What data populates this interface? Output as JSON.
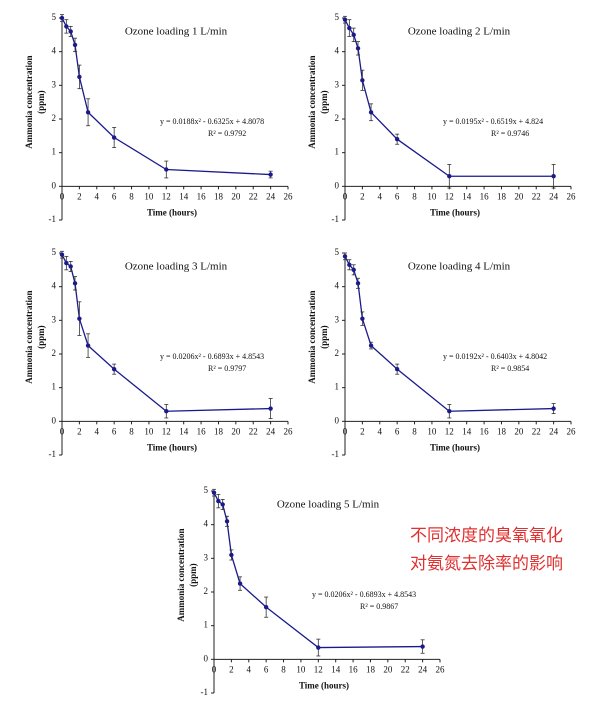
{
  "chart_data": [
    {
      "type": "line",
      "title": "Ozone loading 1 L/min",
      "xlabel": "Time (hours)",
      "ylabel": [
        "Ammonia concentration",
        "(ppm)"
      ],
      "x": [
        0,
        0.5,
        1,
        1.5,
        2,
        3,
        6,
        12,
        24
      ],
      "series": [
        {
          "color": "#1a1a8c",
          "values": [
            5.0,
            4.75,
            4.6,
            4.2,
            3.25,
            2.2,
            1.45,
            0.5,
            0.35
          ],
          "errors": [
            0.1,
            0.2,
            0.15,
            0.2,
            0.35,
            0.4,
            0.3,
            0.25,
            0.1
          ]
        }
      ],
      "annotations": [
        "y = 0.0188x² - 0.6325x + 4.8078",
        "R² = 0.9792"
      ],
      "xlim": [
        0,
        26
      ],
      "xticks": [
        0,
        2,
        4,
        6,
        8,
        10,
        12,
        14,
        16,
        18,
        20,
        22,
        24,
        26
      ],
      "ylim": [
        -1,
        5
      ],
      "yticks": [
        -1,
        0,
        1,
        2,
        3,
        4,
        5
      ]
    },
    {
      "type": "line",
      "title": "Ozone loading 2 L/min",
      "xlabel": "Time (hours)",
      "ylabel": [
        "Ammonia concentration",
        "(ppm)"
      ],
      "x": [
        0,
        0.5,
        1,
        1.5,
        2,
        3,
        6,
        12,
        24
      ],
      "series": [
        {
          "color": "#1a1a8c",
          "values": [
            4.95,
            4.7,
            4.5,
            4.1,
            3.15,
            2.2,
            1.4,
            0.3,
            0.3
          ],
          "errors": [
            0.1,
            0.25,
            0.2,
            0.2,
            0.3,
            0.25,
            0.15,
            0.35,
            0.35
          ]
        }
      ],
      "annotations": [
        "y = 0.0195x² - 0.6519x + 4.824",
        "R² = 0.9746"
      ],
      "xlim": [
        0,
        26
      ],
      "xticks": [
        0,
        2,
        4,
        6,
        8,
        10,
        12,
        14,
        16,
        18,
        20,
        22,
        24,
        26
      ],
      "ylim": [
        -1,
        5
      ],
      "yticks": [
        -1,
        0,
        1,
        2,
        3,
        4,
        5
      ]
    },
    {
      "type": "line",
      "title": "Ozone loading 3 L/min",
      "xlabel": "Time (hours)",
      "ylabel": [
        "Ammonia concentration",
        "(ppm)"
      ],
      "x": [
        0,
        0.5,
        1,
        1.5,
        2,
        3,
        6,
        12,
        24
      ],
      "series": [
        {
          "color": "#1a1a8c",
          "values": [
            4.95,
            4.7,
            4.6,
            4.1,
            3.05,
            2.25,
            1.55,
            0.3,
            0.38
          ],
          "errors": [
            0.1,
            0.2,
            0.15,
            0.2,
            0.5,
            0.35,
            0.15,
            0.2,
            0.3
          ]
        }
      ],
      "annotations": [
        "y = 0.0206x² - 0.6893x + 4.8543",
        "R² = 0.9797"
      ],
      "xlim": [
        0,
        26
      ],
      "xticks": [
        0,
        2,
        4,
        6,
        8,
        10,
        12,
        14,
        16,
        18,
        20,
        22,
        24,
        26
      ],
      "ylim": [
        -1,
        5
      ],
      "yticks": [
        -1,
        0,
        1,
        2,
        3,
        4,
        5
      ]
    },
    {
      "type": "line",
      "title": "Ozone loading 4 L/min",
      "xlabel": "Time (hours)",
      "ylabel": [
        "Ammonia concentration",
        "(ppm)"
      ],
      "x": [
        0,
        0.5,
        1,
        1.5,
        2,
        3,
        6,
        12,
        24
      ],
      "series": [
        {
          "color": "#1a1a8c",
          "values": [
            4.9,
            4.65,
            4.5,
            4.1,
            3.05,
            2.25,
            1.55,
            0.3,
            0.38
          ],
          "errors": [
            0.1,
            0.15,
            0.15,
            0.15,
            0.2,
            0.1,
            0.15,
            0.2,
            0.15
          ]
        }
      ],
      "annotations": [
        "y = 0.0192x² - 0.6403x + 4.8042",
        "R² = 0.9854"
      ],
      "xlim": [
        0,
        26
      ],
      "xticks": [
        0,
        2,
        4,
        6,
        8,
        10,
        12,
        14,
        16,
        18,
        20,
        22,
        24,
        26
      ],
      "ylim": [
        -1,
        5
      ],
      "yticks": [
        -1,
        0,
        1,
        2,
        3,
        4,
        5
      ]
    },
    {
      "type": "line",
      "title": "Ozone loading 5 L/min",
      "xlabel": "Time (hours)",
      "ylabel": [
        "Ammonia concentration",
        "(ppm)"
      ],
      "x": [
        0,
        0.5,
        1,
        1.5,
        2,
        3,
        6,
        12,
        24
      ],
      "series": [
        {
          "color": "#1a1a8c",
          "values": [
            4.95,
            4.7,
            4.6,
            4.1,
            3.1,
            2.25,
            1.55,
            0.35,
            0.38
          ],
          "errors": [
            0.1,
            0.2,
            0.15,
            0.15,
            0.15,
            0.2,
            0.3,
            0.25,
            0.2
          ]
        }
      ],
      "annotations": [
        "y = 0.0206x² - 0.6893x + 4.8543",
        "R² = 0.9867"
      ],
      "xlim": [
        0,
        26
      ],
      "xticks": [
        0,
        2,
        4,
        6,
        8,
        10,
        12,
        14,
        16,
        18,
        20,
        22,
        24,
        26
      ],
      "ylim": [
        -1,
        5
      ],
      "yticks": [
        -1,
        0,
        1,
        2,
        3,
        4,
        5
      ]
    }
  ],
  "caption": [
    "不同浓度的臭氧氧化",
    "对氨氮去除率的影响"
  ]
}
